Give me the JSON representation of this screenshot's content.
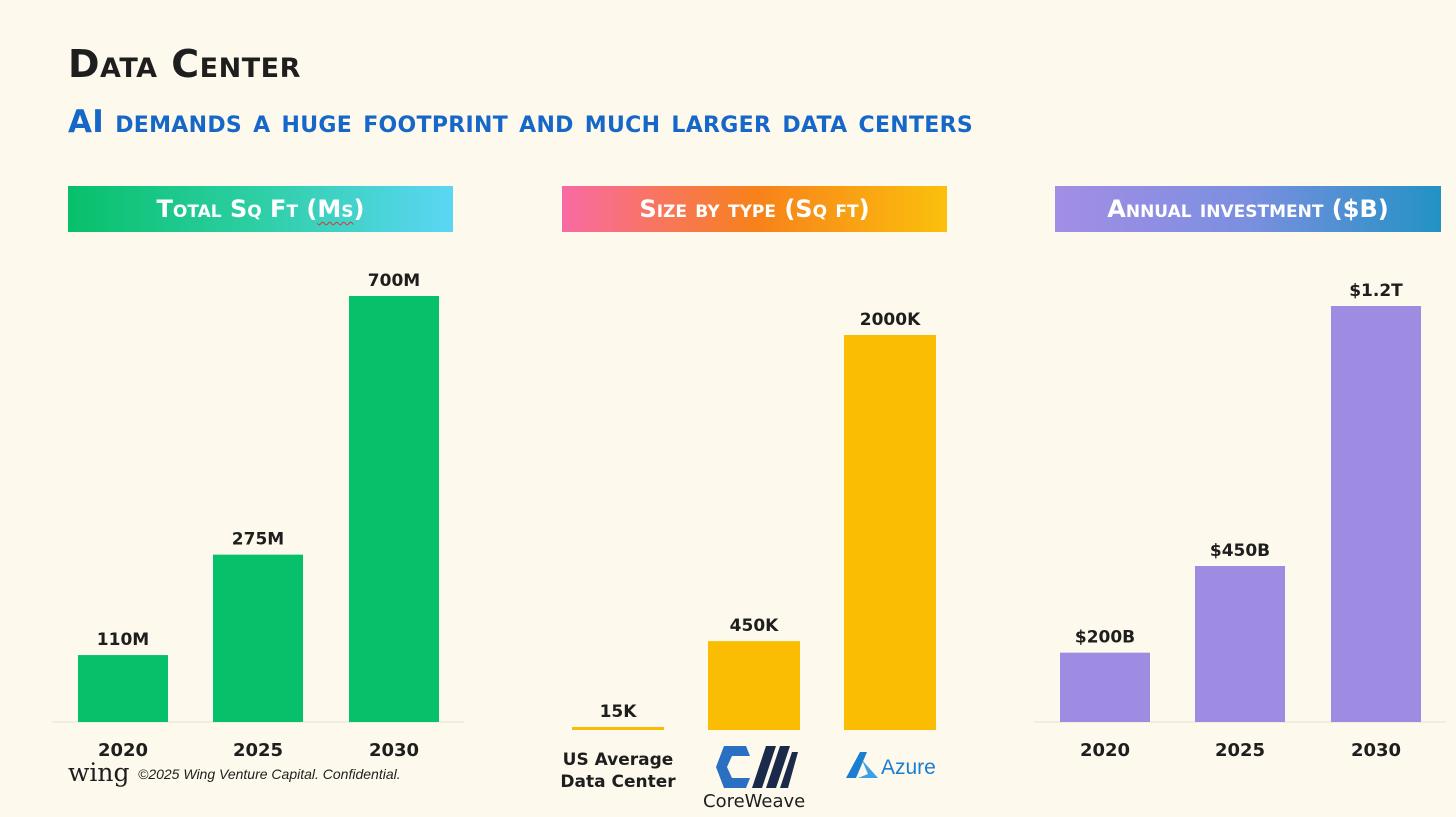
{
  "title": "Data Center",
  "subtitle": "AI demands a huge footprint and much larger data centers",
  "headers": {
    "sqft_prefix": "Total Sq Ft (",
    "sqft_squiggle": "Ms",
    "sqft_suffix": ")",
    "size": "Size by type (Sq ft)",
    "investment": "Annual investment ($B)"
  },
  "colors": {
    "green": "#07c06a",
    "yellow": "#fbbc04",
    "purple": "#9e8ce3",
    "title_blue": "#1667c8",
    "azure_blue": "#1b7ed1",
    "coreweave_blue": "#2a6fc2",
    "coreweave_dark": "#1b2a4a"
  },
  "footer": {
    "logo": "wing",
    "copyright": "©2025 Wing Venture Capital. Confidential."
  },
  "categories_custom": {
    "us_average": "US Average\nData Center",
    "coreweave": "CoreWeave",
    "azure": "Azure",
    "coreweave_icon": "coreweave-logo-icon",
    "azure_icon": "azure-logo-icon"
  },
  "chart_data": [
    {
      "type": "bar",
      "title": "Total Sq Ft (Ms)",
      "categories": [
        "2020",
        "2025",
        "2030"
      ],
      "values": [
        110,
        275,
        700
      ],
      "labels": [
        "110M",
        "275M",
        "700M"
      ],
      "unit": "M sq ft",
      "ylim": [
        0,
        700
      ],
      "grid": false,
      "color": "#07c06a"
    },
    {
      "type": "bar",
      "title": "Size by type (Sq ft)",
      "categories": [
        "US Average Data Center",
        "CoreWeave",
        "Azure"
      ],
      "values": [
        15,
        450,
        2000
      ],
      "labels": [
        "15K",
        "450K",
        "2000K"
      ],
      "unit": "K sq ft",
      "ylim": [
        0,
        2000
      ],
      "grid": false,
      "color": "#fbbc04"
    },
    {
      "type": "bar",
      "title": "Annual investment ($B)",
      "categories": [
        "2020",
        "2025",
        "2030"
      ],
      "values": [
        200,
        450,
        1200
      ],
      "labels": [
        "$200B",
        "$450B",
        "$1.2T"
      ],
      "unit": "$B",
      "ylim": [
        0,
        1200
      ],
      "grid": false,
      "color": "#9e8ce3"
    }
  ]
}
